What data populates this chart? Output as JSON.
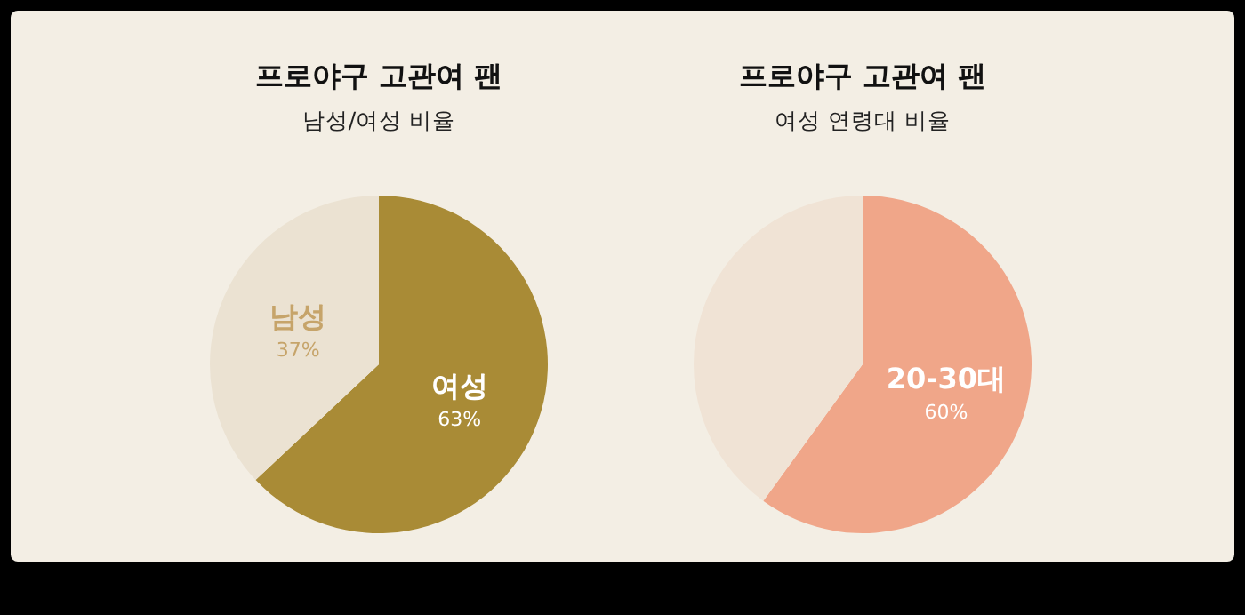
{
  "chart_data": [
    {
      "type": "pie",
      "title": "프로야구 고관여 팬",
      "subtitle": "남성/여성 비율",
      "categories": [
        "여성",
        "남성"
      ],
      "values": [
        63,
        37
      ],
      "colors": [
        "#a98b36",
        "#ebe2d2"
      ],
      "value_labels": [
        "63%",
        "37%"
      ]
    },
    {
      "type": "pie",
      "title": "프로야구 고관여 팬",
      "subtitle": "여성 연령대 비율",
      "categories": [
        "20-30대",
        null
      ],
      "values": [
        60,
        40
      ],
      "colors": [
        "#f0a689",
        "#f0e3d5"
      ],
      "value_labels": [
        "60%",
        null
      ]
    }
  ]
}
